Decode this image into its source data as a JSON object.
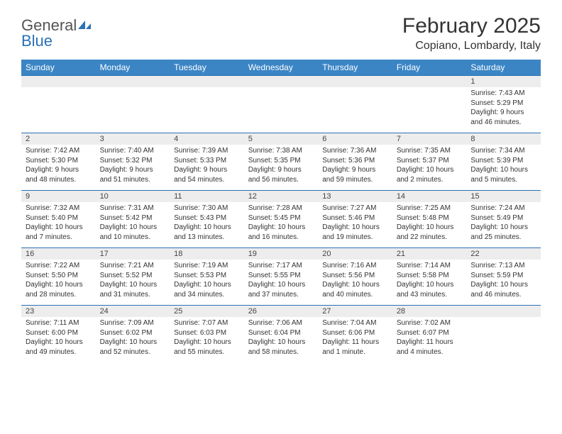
{
  "logo": {
    "text1": "General",
    "text2": "Blue"
  },
  "title": "February 2025",
  "location": "Copiano, Lombardy, Italy",
  "weekdays": [
    "Sunday",
    "Monday",
    "Tuesday",
    "Wednesday",
    "Thursday",
    "Friday",
    "Saturday"
  ],
  "colors": {
    "header_bg": "#3b85c5",
    "row_border": "#2a72b5",
    "shade": "#ededed"
  },
  "weeks": [
    {
      "days": [
        {
          "n": "",
          "lines": []
        },
        {
          "n": "",
          "lines": []
        },
        {
          "n": "",
          "lines": []
        },
        {
          "n": "",
          "lines": []
        },
        {
          "n": "",
          "lines": []
        },
        {
          "n": "",
          "lines": []
        },
        {
          "n": "1",
          "lines": [
            "Sunrise: 7:43 AM",
            "Sunset: 5:29 PM",
            "Daylight: 9 hours and 46 minutes."
          ]
        }
      ]
    },
    {
      "days": [
        {
          "n": "2",
          "lines": [
            "Sunrise: 7:42 AM",
            "Sunset: 5:30 PM",
            "Daylight: 9 hours and 48 minutes."
          ]
        },
        {
          "n": "3",
          "lines": [
            "Sunrise: 7:40 AM",
            "Sunset: 5:32 PM",
            "Daylight: 9 hours and 51 minutes."
          ]
        },
        {
          "n": "4",
          "lines": [
            "Sunrise: 7:39 AM",
            "Sunset: 5:33 PM",
            "Daylight: 9 hours and 54 minutes."
          ]
        },
        {
          "n": "5",
          "lines": [
            "Sunrise: 7:38 AM",
            "Sunset: 5:35 PM",
            "Daylight: 9 hours and 56 minutes."
          ]
        },
        {
          "n": "6",
          "lines": [
            "Sunrise: 7:36 AM",
            "Sunset: 5:36 PM",
            "Daylight: 9 hours and 59 minutes."
          ]
        },
        {
          "n": "7",
          "lines": [
            "Sunrise: 7:35 AM",
            "Sunset: 5:37 PM",
            "Daylight: 10 hours and 2 minutes."
          ]
        },
        {
          "n": "8",
          "lines": [
            "Sunrise: 7:34 AM",
            "Sunset: 5:39 PM",
            "Daylight: 10 hours and 5 minutes."
          ]
        }
      ]
    },
    {
      "days": [
        {
          "n": "9",
          "lines": [
            "Sunrise: 7:32 AM",
            "Sunset: 5:40 PM",
            "Daylight: 10 hours and 7 minutes."
          ]
        },
        {
          "n": "10",
          "lines": [
            "Sunrise: 7:31 AM",
            "Sunset: 5:42 PM",
            "Daylight: 10 hours and 10 minutes."
          ]
        },
        {
          "n": "11",
          "lines": [
            "Sunrise: 7:30 AM",
            "Sunset: 5:43 PM",
            "Daylight: 10 hours and 13 minutes."
          ]
        },
        {
          "n": "12",
          "lines": [
            "Sunrise: 7:28 AM",
            "Sunset: 5:45 PM",
            "Daylight: 10 hours and 16 minutes."
          ]
        },
        {
          "n": "13",
          "lines": [
            "Sunrise: 7:27 AM",
            "Sunset: 5:46 PM",
            "Daylight: 10 hours and 19 minutes."
          ]
        },
        {
          "n": "14",
          "lines": [
            "Sunrise: 7:25 AM",
            "Sunset: 5:48 PM",
            "Daylight: 10 hours and 22 minutes."
          ]
        },
        {
          "n": "15",
          "lines": [
            "Sunrise: 7:24 AM",
            "Sunset: 5:49 PM",
            "Daylight: 10 hours and 25 minutes."
          ]
        }
      ]
    },
    {
      "days": [
        {
          "n": "16",
          "lines": [
            "Sunrise: 7:22 AM",
            "Sunset: 5:50 PM",
            "Daylight: 10 hours and 28 minutes."
          ]
        },
        {
          "n": "17",
          "lines": [
            "Sunrise: 7:21 AM",
            "Sunset: 5:52 PM",
            "Daylight: 10 hours and 31 minutes."
          ]
        },
        {
          "n": "18",
          "lines": [
            "Sunrise: 7:19 AM",
            "Sunset: 5:53 PM",
            "Daylight: 10 hours and 34 minutes."
          ]
        },
        {
          "n": "19",
          "lines": [
            "Sunrise: 7:17 AM",
            "Sunset: 5:55 PM",
            "Daylight: 10 hours and 37 minutes."
          ]
        },
        {
          "n": "20",
          "lines": [
            "Sunrise: 7:16 AM",
            "Sunset: 5:56 PM",
            "Daylight: 10 hours and 40 minutes."
          ]
        },
        {
          "n": "21",
          "lines": [
            "Sunrise: 7:14 AM",
            "Sunset: 5:58 PM",
            "Daylight: 10 hours and 43 minutes."
          ]
        },
        {
          "n": "22",
          "lines": [
            "Sunrise: 7:13 AM",
            "Sunset: 5:59 PM",
            "Daylight: 10 hours and 46 minutes."
          ]
        }
      ]
    },
    {
      "days": [
        {
          "n": "23",
          "lines": [
            "Sunrise: 7:11 AM",
            "Sunset: 6:00 PM",
            "Daylight: 10 hours and 49 minutes."
          ]
        },
        {
          "n": "24",
          "lines": [
            "Sunrise: 7:09 AM",
            "Sunset: 6:02 PM",
            "Daylight: 10 hours and 52 minutes."
          ]
        },
        {
          "n": "25",
          "lines": [
            "Sunrise: 7:07 AM",
            "Sunset: 6:03 PM",
            "Daylight: 10 hours and 55 minutes."
          ]
        },
        {
          "n": "26",
          "lines": [
            "Sunrise: 7:06 AM",
            "Sunset: 6:04 PM",
            "Daylight: 10 hours and 58 minutes."
          ]
        },
        {
          "n": "27",
          "lines": [
            "Sunrise: 7:04 AM",
            "Sunset: 6:06 PM",
            "Daylight: 11 hours and 1 minute."
          ]
        },
        {
          "n": "28",
          "lines": [
            "Sunrise: 7:02 AM",
            "Sunset: 6:07 PM",
            "Daylight: 11 hours and 4 minutes."
          ]
        },
        {
          "n": "",
          "lines": []
        }
      ]
    }
  ]
}
